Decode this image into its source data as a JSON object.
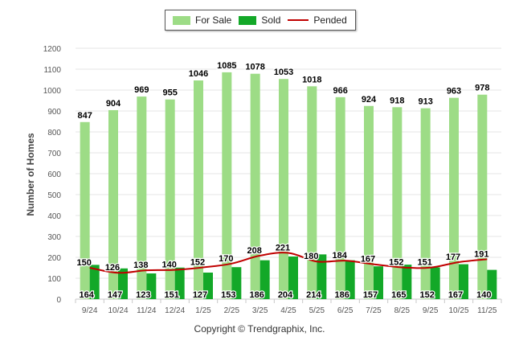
{
  "legend": {
    "for_sale_label": "For Sale",
    "sold_label": "Sold",
    "pended_label": "Pended"
  },
  "footer": {
    "copyright": "Copyright © Trendgraphix, Inc."
  },
  "colors": {
    "for_sale": "#9ddc86",
    "sold": "#13a828",
    "pended": "#c00000",
    "grid": "#e6e6e6",
    "axis_text": "#555555"
  },
  "chart_data": {
    "type": "bar",
    "ylabel": "Number of Homes",
    "xlabel": "",
    "ylim": [
      0,
      1200
    ],
    "yticks": [
      0,
      100,
      200,
      300,
      400,
      500,
      600,
      700,
      800,
      900,
      1000,
      1100,
      1200
    ],
    "grid": true,
    "legend_position": "top-center",
    "categories": [
      "9/24",
      "10/24",
      "11/24",
      "12/24",
      "1/25",
      "2/25",
      "3/25",
      "4/25",
      "5/25",
      "6/25",
      "7/25",
      "8/25",
      "9/25",
      "10/25",
      "11/25"
    ],
    "series": [
      {
        "name": "For Sale",
        "type": "bar",
        "values": [
          847,
          904,
          969,
          955,
          1046,
          1085,
          1078,
          1053,
          1018,
          966,
          924,
          918,
          913,
          963,
          978
        ]
      },
      {
        "name": "Sold",
        "type": "bar",
        "values": [
          164,
          147,
          123,
          151,
          127,
          153,
          186,
          204,
          214,
          186,
          157,
          165,
          152,
          167,
          140
        ]
      },
      {
        "name": "Pended",
        "type": "line",
        "values": [
          150,
          126,
          138,
          140,
          152,
          170,
          208,
          221,
          180,
          184,
          167,
          152,
          151,
          177,
          191
        ]
      }
    ]
  }
}
